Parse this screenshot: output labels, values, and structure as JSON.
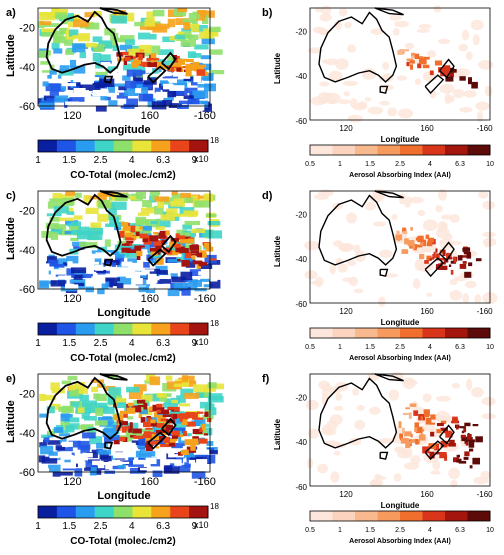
{
  "panels": [
    {
      "id": "a",
      "label": "a)",
      "kind": "co",
      "ytitle": "Latitude",
      "xtitle": "Longitude",
      "yticks": [
        "-20",
        "-40",
        "-60"
      ],
      "xticks": [
        "120",
        "160",
        "-160"
      ]
    },
    {
      "id": "b",
      "label": "b)",
      "kind": "aai",
      "ytitle": "Latitude",
      "xtitle": "Longitude",
      "yticks": [
        "-20",
        "-40",
        "-60"
      ],
      "xticks": [
        "120",
        "160",
        "-160"
      ]
    },
    {
      "id": "c",
      "label": "c)",
      "kind": "co",
      "ytitle": "Latitude",
      "xtitle": "Longitude",
      "yticks": [
        "-20",
        "-40",
        "-60"
      ],
      "xticks": [
        "120",
        "160",
        "-160"
      ]
    },
    {
      "id": "d",
      "label": "d)",
      "kind": "aai",
      "ytitle": "Latitude",
      "xtitle": "Longitude",
      "yticks": [
        "-20",
        "-40",
        "-60"
      ],
      "xticks": [
        "120",
        "160",
        "-160"
      ]
    },
    {
      "id": "e",
      "label": "e)",
      "kind": "co",
      "ytitle": "Latitude",
      "xtitle": "Longitude",
      "yticks": [
        "-20",
        "-40",
        "-60"
      ],
      "xticks": [
        "120",
        "160",
        "-160"
      ]
    },
    {
      "id": "f",
      "label": "f)",
      "kind": "aai",
      "ytitle": "Latitude",
      "xtitle": "Longitude",
      "yticks": [
        "-20",
        "-40",
        "-60"
      ],
      "xticks": [
        "120",
        "160",
        "-160"
      ]
    }
  ],
  "co_colorbar": {
    "ticks": [
      "1",
      "1.5",
      "2.5",
      "4",
      "6.3",
      "9"
    ],
    "multiplier": "x10",
    "exponent": "18",
    "title": "CO-Total (molec./cm2)",
    "colors": [
      "#0a1ea0",
      "#1f55e6",
      "#2a9cf0",
      "#3fd4c8",
      "#8ee06a",
      "#e8e43a",
      "#f7a21c",
      "#e8461a",
      "#a3130f"
    ]
  },
  "aai_colorbar": {
    "ticks": [
      "0.5",
      "1",
      "1.5",
      "2.5",
      "4",
      "6.3",
      "10"
    ],
    "title": "Aerosol Absorbing Index (AAI)",
    "colors": [
      "#fde6dc",
      "#fbd3be",
      "#f9b98f",
      "#f79a5d",
      "#f06f2c",
      "#d8351a",
      "#a4150d",
      "#5c0b08"
    ]
  }
}
